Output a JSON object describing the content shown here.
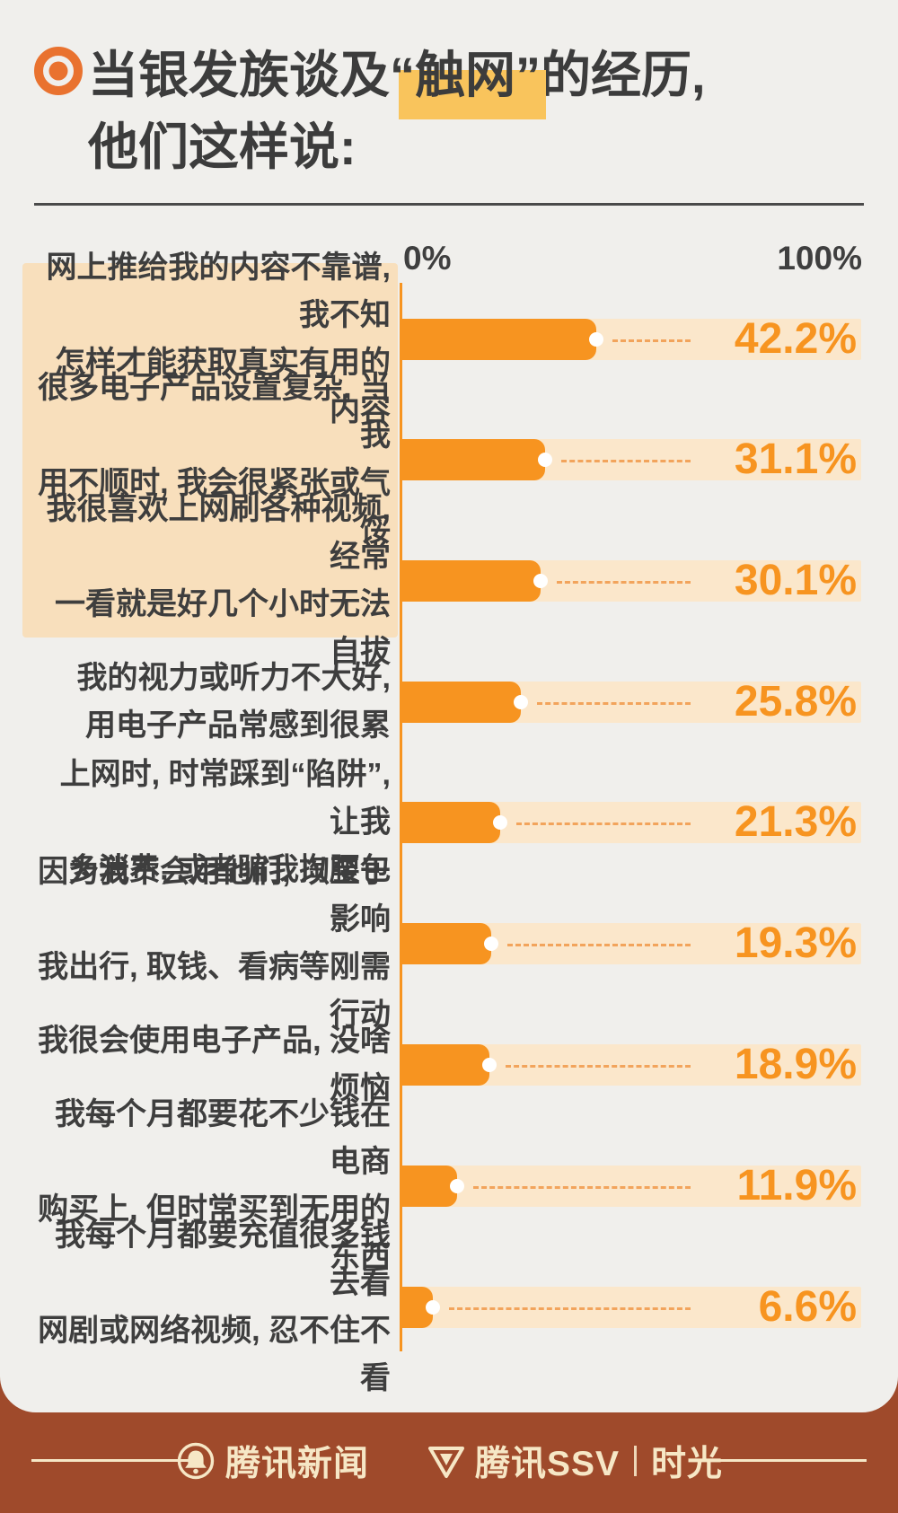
{
  "title": {
    "prefix": "当银发族谈及",
    "highlight": "“触网”",
    "suffix": "的经历,",
    "line2": "他们这样说:"
  },
  "axis": {
    "min_label": "0%",
    "max_label": "100%"
  },
  "rows": [
    {
      "label": "网上推给我的内容不靠谱, 我不知\n怎样才能获取真实有用的内容",
      "value": 42.2,
      "pct": "42.2%"
    },
    {
      "label": "很多电子产品设置复杂, 当我\n用不顺时, 我会很紧张或气馁",
      "value": 31.1,
      "pct": "31.1%"
    },
    {
      "label": "我很喜欢上网刷各种视频, 经常\n一看就是好几个小时无法自拔",
      "value": 30.1,
      "pct": "30.1%"
    },
    {
      "label": "我的视力或听力不大好,\n用电子产品常感到很累",
      "value": 25.8,
      "pct": "25.8%"
    },
    {
      "label": "上网时, 时常踩到“陷阱”, 让我\n多消费, 或者骗我掏腰包",
      "value": 21.3,
      "pct": "21.3%"
    },
    {
      "label": "因为我不会用他们, 以至于影响\n我出行, 取钱、看病等刚需行动",
      "value": 19.3,
      "pct": "19.3%"
    },
    {
      "label": "我很会使用电子产品, 没啥烦恼",
      "value": 18.9,
      "pct": "18.9%"
    },
    {
      "label": "我每个月都要花不少钱在电商\n购买上, 但时常买到无用的东西",
      "value": 11.9,
      "pct": "11.9%"
    },
    {
      "label": "我每个月都要充值很多钱去看\n网剧或网络视频, 忍不住不看",
      "value": 6.6,
      "pct": "6.6%"
    }
  ],
  "footer": {
    "brand1": "腾讯新闻",
    "brand2": "腾讯SSV",
    "divider": "|",
    "brand3": "时光"
  },
  "colors": {
    "bar_orange": "#f79420",
    "track_peach": "#fbe7cb",
    "panel_peach": "#f8dfbc",
    "highlight_yellow": "#f9c45c",
    "footer_brown": "#9f4a2b",
    "footer_cream": "#f6e7c6",
    "text_dark": "#3c3c3c"
  },
  "chart_data": {
    "type": "bar",
    "orientation": "horizontal",
    "title": "当银发族谈及“触网”的经历, 他们这样说:",
    "categories": [
      "网上推给我的内容不靠谱, 我不知怎样才能获取真实有用的内容",
      "很多电子产品设置复杂, 当我用不顺时, 我会很紧张或气馁",
      "我很喜欢上网刷各种视频, 经常一看就是好几个小时无法自拔",
      "我的视力或听力不大好, 用电子产品常感到很累",
      "上网时, 时常踩到“陷阱”, 让我多消费, 或者骗我掏腰包",
      "因为我不会用他们, 以至于影响我出行, 取钱、看病等刚需行动",
      "我很会使用电子产品, 没啥烦恼",
      "我每个月都要花不少钱在电商购买上, 但时常买到无用的东西",
      "我每个月都要充值很多钱去看网剧或网络视频, 忍不住不看"
    ],
    "values": [
      42.2,
      31.1,
      30.1,
      25.8,
      21.3,
      19.3,
      18.9,
      11.9,
      6.6
    ],
    "xlabel": "",
    "ylabel": "",
    "xlim": [
      0,
      100
    ],
    "x_ticks": [
      "0%",
      "100%"
    ],
    "grid": false,
    "legend": false,
    "data_labels": [
      "42.2%",
      "31.1%",
      "30.1%",
      "25.8%",
      "21.3%",
      "19.3%",
      "18.9%",
      "11.9%",
      "6.6%"
    ]
  }
}
